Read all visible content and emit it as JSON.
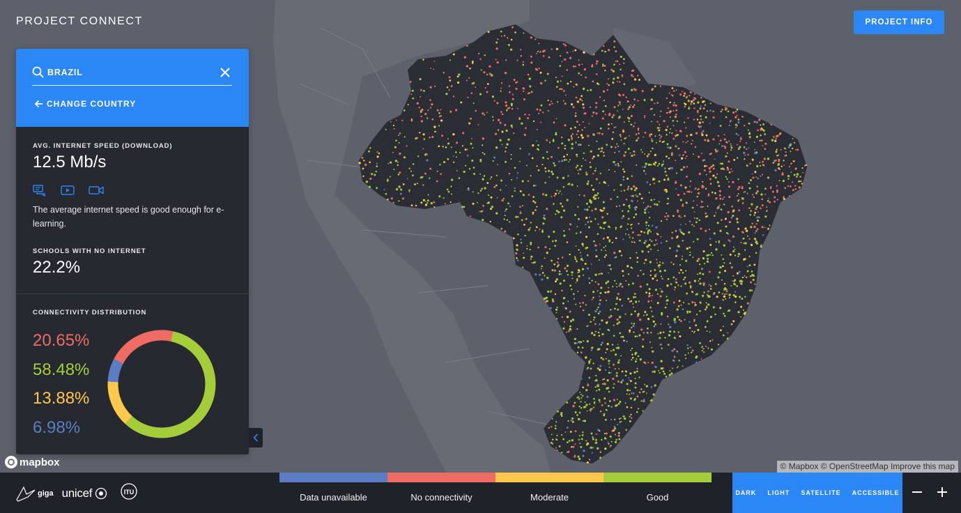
{
  "app": {
    "title": "PROJECT CONNECT",
    "info_button": "PROJECT INFO"
  },
  "panel": {
    "search_value": "BRAZIL",
    "change_country": "CHANGE COUNTRY",
    "avg_speed_label": "AVG. INTERNET SPEED (DOWNLOAD)",
    "avg_speed_value": "12.5 Mb/s",
    "speed_description": "The average internet speed is good enough for e-learning.",
    "no_internet_label": "SCHOOLS WITH NO INTERNET",
    "no_internet_value": "22.2%",
    "distribution_label": "CONNECTIVITY DISTRIBUTION",
    "distribution": [
      {
        "pct": "20.65%",
        "value": 20.65,
        "color": "#ef6c64",
        "category": "No connectivity"
      },
      {
        "pct": "58.48%",
        "value": 58.48,
        "color": "#a5cd39",
        "category": "Good"
      },
      {
        "pct": "13.88%",
        "value": 13.88,
        "color": "#fec84c",
        "category": "Moderate"
      },
      {
        "pct": "6.98%",
        "value": 6.98,
        "color": "#5c7cc4",
        "category": "Data unavailable"
      }
    ],
    "speed_icons": [
      "chat-icon",
      "video-play-icon",
      "video-camera-icon"
    ]
  },
  "map": {
    "attribution": "© Mapbox © OpenStreetMap Improve this map",
    "logo": "mapbox"
  },
  "footer": {
    "logos": {
      "giga": "giga",
      "unicef": "unicef",
      "itu": "ITU"
    },
    "legend": [
      {
        "label": "Data unavailable",
        "color": "#5c7cc4"
      },
      {
        "label": "No connectivity",
        "color": "#ef6c64"
      },
      {
        "label": "Moderate",
        "color": "#fec84c"
      },
      {
        "label": "Good",
        "color": "#a5cd39"
      }
    ],
    "map_styles": [
      "DARK",
      "LIGHT",
      "SATELLITE",
      "ACCESSIBLE"
    ],
    "zoom_out": "−",
    "zoom_in": "+"
  },
  "colors": {
    "accent": "#2b86f6",
    "panel_bg": "#262930",
    "map_bg": "#5d616b",
    "country_fill": "#2a2d34"
  }
}
